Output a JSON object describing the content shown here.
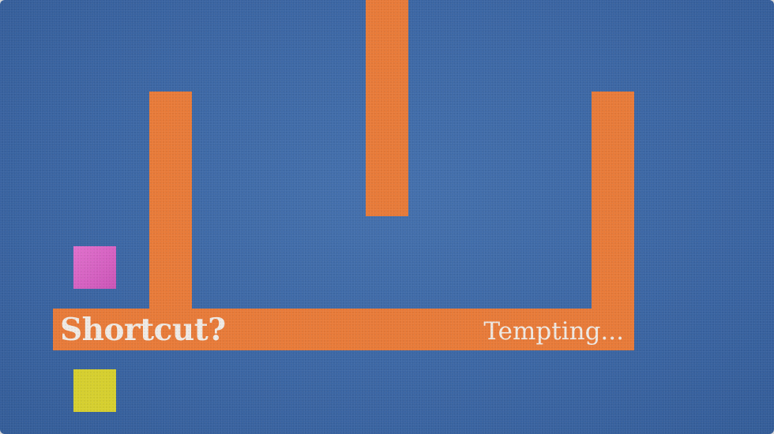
{
  "scene": {
    "background_color": "#3b66a4",
    "wall_color": "#e87a38",
    "player": {
      "color": "#d45fc0"
    },
    "goal": {
      "color": "#d6cf2e"
    }
  },
  "text": {
    "shortcut_label": "Shortcut?",
    "tempting_label": "Tempting..."
  }
}
